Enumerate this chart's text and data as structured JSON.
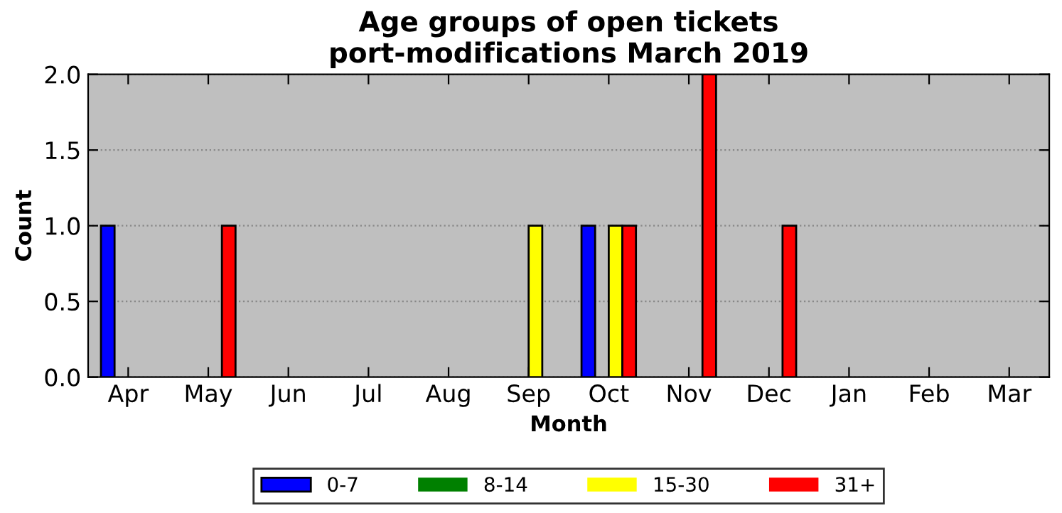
{
  "chart_data": {
    "type": "bar",
    "title": "Age groups of open tickets\nport-modifications March 2019",
    "xlabel": "Month",
    "ylabel": "Count",
    "categories": [
      "Apr",
      "May",
      "Jun",
      "Jul",
      "Aug",
      "Sep",
      "Oct",
      "Nov",
      "Dec",
      "Jan",
      "Feb",
      "Mar"
    ],
    "series": [
      {
        "name": "0-7",
        "color": "#0000ff",
        "values": [
          1,
          0,
          0,
          0,
          0,
          0,
          1,
          0,
          0,
          0,
          0,
          0
        ]
      },
      {
        "name": "8-14",
        "color": "#008000",
        "values": [
          0,
          0,
          0,
          0,
          0,
          0,
          0,
          0,
          0,
          0,
          0,
          0
        ]
      },
      {
        "name": "15-30",
        "color": "#ffff00",
        "values": [
          0,
          0,
          0,
          0,
          0,
          1,
          1,
          0,
          0,
          0,
          0,
          0
        ]
      },
      {
        "name": "31+",
        "color": "#ff0000",
        "values": [
          0,
          1,
          0,
          0,
          0,
          0,
          1,
          2,
          1,
          0,
          0,
          0
        ]
      }
    ],
    "ylim": [
      0,
      2
    ],
    "yticks": [
      {
        "value": 0,
        "label": "0.0"
      },
      {
        "value": 0.5,
        "label": "0.5"
      },
      {
        "value": 1,
        "label": "1.0"
      },
      {
        "value": 1.5,
        "label": "1.5"
      },
      {
        "value": 2,
        "label": "2.0"
      }
    ],
    "grid": "y",
    "legend": "bottom"
  }
}
